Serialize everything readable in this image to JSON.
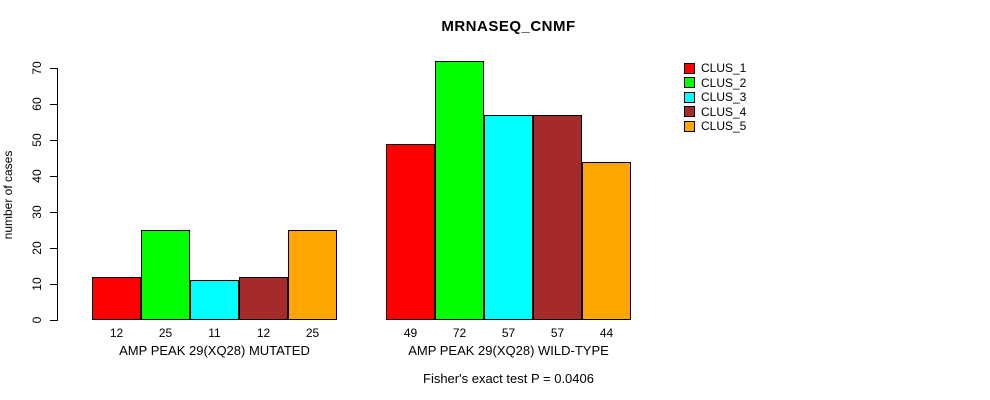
{
  "title": "MRNASEQ_CNMF",
  "footer": {
    "note": "Fisher's exact test P = 0.0406"
  },
  "chart_data": {
    "type": "bar",
    "title": "MRNASEQ_CNMF",
    "xlabel": "",
    "ylabel": "number of cases",
    "ylim": [
      0,
      70
    ],
    "yticks": [
      0,
      10,
      20,
      30,
      40,
      50,
      60,
      70
    ],
    "grid": false,
    "legend_position": "top-right",
    "bar_value_labels_shown": true,
    "categories": [
      "AMP PEAK 29(XQ28) MUTATED",
      "AMP PEAK 29(XQ28) WILD-TYPE"
    ],
    "series": [
      {
        "name": "CLUS_1",
        "color": "#FF0000",
        "values": [
          12,
          49
        ]
      },
      {
        "name": "CLUS_2",
        "color": "#00FF00",
        "values": [
          25,
          72
        ]
      },
      {
        "name": "CLUS_3",
        "color": "#00FFFF",
        "values": [
          11,
          57
        ]
      },
      {
        "name": "CLUS_4",
        "color": "#A52A2A",
        "values": [
          12,
          57
        ]
      },
      {
        "name": "CLUS_5",
        "color": "#FFA500",
        "values": [
          25,
          44
        ]
      }
    ],
    "annotation": "Fisher's exact test P = 0.0406"
  }
}
